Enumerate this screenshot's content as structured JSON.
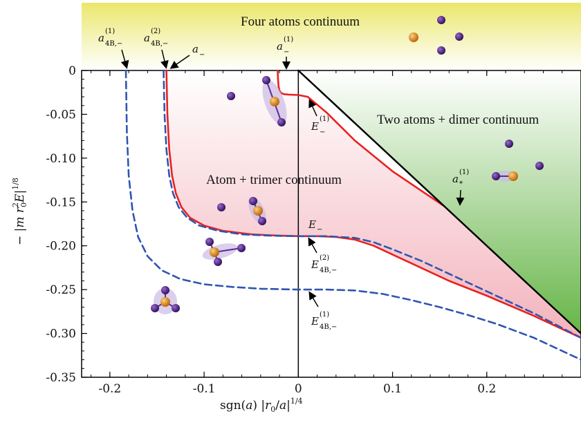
{
  "chart_data": {
    "type": "line",
    "xlabel": "sgn(a) |r₀/a|^{1/4}",
    "ylabel": "− |m r₀² E|^{1/8}",
    "xlim": [
      -0.23,
      0.3
    ],
    "ylim": [
      -0.35,
      0.0
    ],
    "x_ticks": [
      -0.2,
      -0.1,
      0.0,
      0.1,
      0.2
    ],
    "x_tick_labels": [
      "-0.2",
      "-0.1",
      "0",
      "0.1",
      "0.2"
    ],
    "y_ticks": [
      0,
      -0.05,
      -0.1,
      -0.15,
      -0.2,
      -0.25,
      -0.3,
      -0.35
    ],
    "y_tick_labels": [
      "0",
      "-0.05",
      "-0.10",
      "-0.15",
      "-0.20",
      "-0.25",
      "-0.30",
      "-0.35"
    ],
    "grid": false,
    "series": [
      {
        "style": "solid",
        "color": "#e8211f",
        "x": [
          -0.14,
          -0.139,
          -0.137,
          -0.134,
          -0.13,
          -0.124,
          -0.115,
          -0.1,
          -0.08,
          -0.05,
          -0.02,
          0.0,
          0.02,
          0.04,
          0.06,
          0.08,
          0.1,
          0.13,
          0.16,
          0.2,
          0.25,
          0.3
        ],
        "y": [
          0.0,
          -0.05,
          -0.09,
          -0.12,
          -0.14,
          -0.156,
          -0.168,
          -0.177,
          -0.183,
          -0.187,
          -0.1885,
          -0.189,
          -0.189,
          -0.19,
          -0.193,
          -0.2,
          -0.21,
          -0.225,
          -0.24,
          -0.257,
          -0.28,
          -0.305
        ]
      },
      {
        "style": "dashed",
        "color": "#2f55b0",
        "x": [
          -0.143,
          -0.142,
          -0.14,
          -0.137,
          -0.133,
          -0.127,
          -0.118,
          -0.105,
          -0.085,
          -0.06,
          -0.03,
          0.0,
          0.03,
          0.06,
          0.08,
          0.1,
          0.13,
          0.16,
          0.2,
          0.25,
          0.3
        ],
        "y": [
          0.0,
          -0.05,
          -0.09,
          -0.12,
          -0.14,
          -0.156,
          -0.168,
          -0.177,
          -0.183,
          -0.187,
          -0.1885,
          -0.189,
          -0.189,
          -0.191,
          -0.196,
          -0.204,
          -0.217,
          -0.232,
          -0.252,
          -0.277,
          -0.305
        ]
      },
      {
        "style": "dashed",
        "color": "#2f55b0",
        "x": [
          -0.183,
          -0.182,
          -0.18,
          -0.176,
          -0.17,
          -0.16,
          -0.145,
          -0.125,
          -0.1,
          -0.07,
          -0.04,
          0.0,
          0.03,
          0.06,
          0.09,
          0.12,
          0.15,
          0.18,
          0.21,
          0.25,
          0.29,
          0.3
        ],
        "y": [
          0.0,
          -0.07,
          -0.12,
          -0.16,
          -0.19,
          -0.212,
          -0.228,
          -0.238,
          -0.244,
          -0.247,
          -0.249,
          -0.25,
          -0.25,
          -0.251,
          -0.255,
          -0.262,
          -0.27,
          -0.279,
          -0.289,
          -0.305,
          -0.325,
          -0.33
        ]
      },
      {
        "style": "solid",
        "color": "#e8211f",
        "x": [
          -0.022,
          -0.0215,
          -0.021,
          -0.02,
          -0.018,
          -0.015,
          -0.01,
          0.0,
          0.01,
          0.03,
          0.06,
          0.1,
          0.155
        ],
        "y": [
          0.0,
          -0.01,
          -0.018,
          -0.023,
          -0.026,
          -0.027,
          -0.0275,
          -0.028,
          -0.03,
          -0.048,
          -0.08,
          -0.115,
          -0.155
        ]
      },
      {
        "style": "solid",
        "color": "#000000",
        "x": [
          0.0,
          0.3
        ],
        "y": [
          0.0,
          -0.3
        ]
      }
    ],
    "regions": {
      "top": "Four atoms continuum",
      "right": "Two atoms + dimer continuum",
      "middle": "Atom + trimer continuum"
    },
    "annotations": [
      {
        "base": "a",
        "sub": "4B,−",
        "sup": "(1)"
      },
      {
        "base": "a",
        "sub": "4B,−",
        "sup": "(2)"
      },
      {
        "base": "a",
        "sub": "−",
        "sup": ""
      },
      {
        "base": "a",
        "sub": "−",
        "sup": "(1)"
      },
      {
        "base": "E",
        "sub": "−",
        "sup": "(1)"
      },
      {
        "base": "a",
        "sub": "*",
        "sup": "(1)"
      },
      {
        "base": "E",
        "sub": "−",
        "sup": ""
      },
      {
        "base": "E",
        "sub": "4B,−",
        "sup": "(2)"
      },
      {
        "base": "E",
        "sub": "4B,−",
        "sup": "(1)"
      }
    ],
    "colors": {
      "atom": "#4a1a7a",
      "orange_atom": "#e08a1e",
      "green": "#69b64a",
      "pink": "#f6c9cf",
      "yellow": "#eeeb7a"
    }
  }
}
